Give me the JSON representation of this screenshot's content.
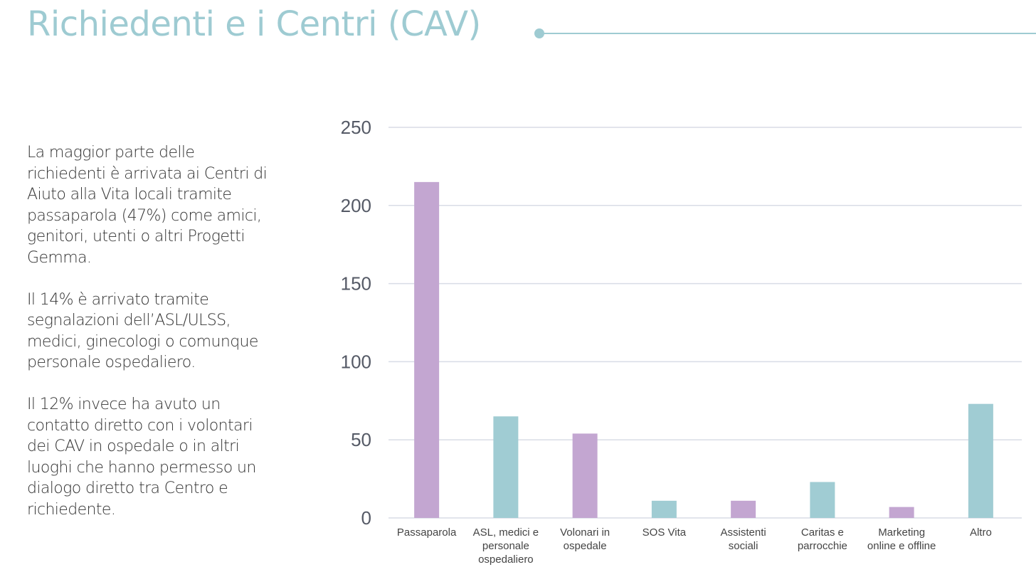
{
  "header": {
    "title": "Richiedenti e i Centri (CAV)",
    "accent_color": "#9ecbd2"
  },
  "text": {
    "paragraphs": [
      "La maggior parte delle richiedenti è arrivata ai Centri di Aiuto alla Vita locali tramite passaparola (47%) come amici, genitori, utenti o altri Progetti Gemma.",
      "Il 14% è arrivato tramite segnalazioni dell’ASL/ULSS, medici, ginecologi o comunque personale ospedaliero.",
      "Il 12% invece ha avuto un contatto diretto con i volontari dei CAV in ospedale o in altri luoghi che hanno permesso un dialogo diretto tra Centro e richiedente."
    ]
  },
  "chart_data": {
    "type": "bar",
    "title": "",
    "xlabel": "",
    "ylabel": "",
    "ylim": [
      0,
      250
    ],
    "yticks": [
      0,
      50,
      100,
      150,
      200,
      250
    ],
    "grid": true,
    "legend": "none",
    "categories": [
      [
        "Passaparola"
      ],
      [
        "ASL, medici e",
        "personale",
        "ospedaliero"
      ],
      [
        "Volonari in",
        "ospedale"
      ],
      [
        "SOS Vita"
      ],
      [
        "Assistenti",
        "sociali"
      ],
      [
        "Caritas e",
        "parrocchie"
      ],
      [
        "Marketing",
        "online e offline"
      ],
      [
        "Altro"
      ]
    ],
    "values": [
      215,
      65,
      54,
      11,
      11,
      23,
      7,
      73
    ],
    "bar_colors": [
      "#c3a6d1",
      "#a0ccd3",
      "#c3a6d1",
      "#a0ccd3",
      "#c3a6d1",
      "#a0ccd3",
      "#c3a6d1",
      "#a0ccd3"
    ],
    "grid_color": "#d9dce6"
  }
}
